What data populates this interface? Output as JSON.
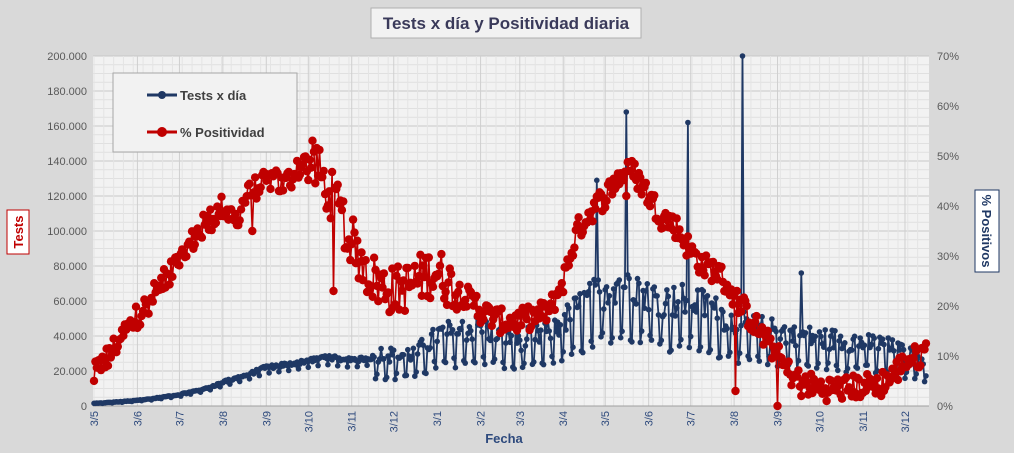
{
  "chart_data": {
    "type": "line",
    "title": "Tests x día y Positividad  diaria",
    "xlabel": "Fecha",
    "ylabel": "Tests",
    "y2label": "% Positivos",
    "ylim": [
      0,
      200000
    ],
    "y2lim": [
      0,
      70
    ],
    "grid": true,
    "legend": "top-left",
    "y_ticks": [
      "0",
      "20.000",
      "40.000",
      "60.000",
      "80.000",
      "100.000",
      "120.000",
      "140.000",
      "160.000",
      "180.000",
      "200.000"
    ],
    "y2_ticks": [
      "0%",
      "10%",
      "20%",
      "30%",
      "40%",
      "50%",
      "60%",
      "70%"
    ],
    "x_ticks": [
      "3/5",
      "3/6",
      "3/7",
      "3/8",
      "3/9",
      "3/10",
      "3/11",
      "3/12",
      "3/1",
      "3/2",
      "3/3",
      "3/4",
      "3/5",
      "3/6",
      "3/7",
      "3/8",
      "3/9",
      "3/10",
      "3/11",
      "3/12"
    ],
    "x_tick_index": [
      0,
      31,
      61,
      92,
      123,
      153,
      184,
      214,
      245,
      276,
      304,
      335,
      365,
      396,
      426,
      457,
      488,
      518,
      549,
      579
    ],
    "n_days": 595,
    "tests_control": [
      [
        0,
        1500
      ],
      [
        20,
        2500
      ],
      [
        40,
        4000
      ],
      [
        61,
        6500
      ],
      [
        80,
        10000
      ],
      [
        92,
        13500
      ],
      [
        110,
        18000
      ],
      [
        123,
        22000
      ],
      [
        140,
        24000
      ],
      [
        153,
        26000
      ],
      [
        165,
        28000
      ],
      [
        184,
        26000
      ],
      [
        200,
        28000
      ],
      [
        214,
        27000
      ],
      [
        230,
        28000
      ],
      [
        245,
        38000
      ],
      [
        260,
        40000
      ],
      [
        276,
        42000
      ],
      [
        290,
        38000
      ],
      [
        304,
        35000
      ],
      [
        320,
        38000
      ],
      [
        335,
        45000
      ],
      [
        350,
        55000
      ],
      [
        365,
        62000
      ],
      [
        380,
        68000
      ],
      [
        396,
        60000
      ],
      [
        410,
        55000
      ],
      [
        426,
        57000
      ],
      [
        440,
        52000
      ],
      [
        457,
        45000
      ],
      [
        470,
        42000
      ],
      [
        488,
        40000
      ],
      [
        500,
        38000
      ],
      [
        518,
        36000
      ],
      [
        535,
        35000
      ],
      [
        549,
        34000
      ],
      [
        565,
        32000
      ],
      [
        579,
        28000
      ],
      [
        594,
        25000
      ]
    ],
    "pos_control": [
      [
        0,
        6
      ],
      [
        10,
        10
      ],
      [
        20,
        14
      ],
      [
        31,
        18
      ],
      [
        45,
        23
      ],
      [
        61,
        29
      ],
      [
        75,
        35
      ],
      [
        92,
        40
      ],
      [
        100,
        37
      ],
      [
        110,
        42
      ],
      [
        123,
        46
      ],
      [
        135,
        44
      ],
      [
        145,
        47
      ],
      [
        153,
        49
      ],
      [
        160,
        47
      ],
      [
        170,
        42
      ],
      [
        184,
        33
      ],
      [
        195,
        27
      ],
      [
        205,
        24
      ],
      [
        214,
        23
      ],
      [
        225,
        24
      ],
      [
        235,
        26
      ],
      [
        245,
        27
      ],
      [
        255,
        24
      ],
      [
        265,
        22
      ],
      [
        276,
        19
      ],
      [
        290,
        17
      ],
      [
        304,
        17
      ],
      [
        315,
        18
      ],
      [
        325,
        19
      ],
      [
        335,
        25
      ],
      [
        345,
        35
      ],
      [
        355,
        39
      ],
      [
        365,
        42
      ],
      [
        375,
        46
      ],
      [
        385,
        47
      ],
      [
        396,
        42
      ],
      [
        405,
        38
      ],
      [
        415,
        36
      ],
      [
        426,
        31
      ],
      [
        435,
        28
      ],
      [
        445,
        27
      ],
      [
        457,
        22
      ],
      [
        465,
        19
      ],
      [
        475,
        15
      ],
      [
        488,
        10
      ],
      [
        495,
        7
      ],
      [
        505,
        5
      ],
      [
        518,
        3.5
      ],
      [
        535,
        3.5
      ],
      [
        549,
        4
      ],
      [
        560,
        4.5
      ],
      [
        570,
        6
      ],
      [
        579,
        9
      ],
      [
        590,
        10
      ],
      [
        594,
        11
      ]
    ],
    "tests_spikes": [
      [
        359,
        129000
      ],
      [
        380,
        168000
      ],
      [
        424,
        162000
      ],
      [
        463,
        200000
      ],
      [
        505,
        76000
      ]
    ],
    "pos_spikes": [
      [
        113,
        35
      ],
      [
        171,
        23
      ],
      [
        256,
        20
      ],
      [
        273,
        22
      ],
      [
        380,
        42
      ],
      [
        458,
        3
      ],
      [
        488,
        0
      ],
      [
        505,
        2
      ],
      [
        560,
        3.5
      ],
      [
        562,
        2
      ]
    ],
    "series": [
      {
        "name": "Tests x día",
        "color": "#1f3864"
      },
      {
        "name": "% Positividad",
        "color": "#c00000"
      }
    ]
  }
}
